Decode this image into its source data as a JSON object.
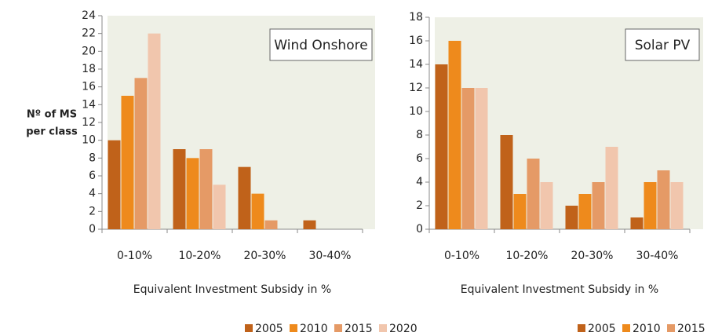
{
  "chart_data": [
    {
      "type": "bar",
      "title": "Wind Onshore",
      "ylabel": [
        "Nº of MS",
        "per class"
      ],
      "xlabel": "Equivalent Investment Subsidy in %",
      "categories": [
        "0-10%",
        "10-20%",
        "20-30%",
        "30-40%"
      ],
      "series": [
        {
          "name": "2005",
          "color": "#c0621a",
          "values": [
            10,
            9,
            7,
            1
          ]
        },
        {
          "name": "2010",
          "color": "#ee8a1c",
          "values": [
            15,
            8,
            4,
            0
          ]
        },
        {
          "name": "2015",
          "color": "#e59a66",
          "values": [
            17,
            9,
            1,
            0
          ]
        },
        {
          "name": "2020",
          "color": "#f1c6ad",
          "values": [
            22,
            5,
            0,
            0
          ]
        }
      ],
      "ylim": [
        0,
        24
      ],
      "yticks": [
        0,
        2,
        4,
        6,
        8,
        10,
        12,
        14,
        16,
        18,
        20,
        22,
        24
      ],
      "legend": "bottom"
    },
    {
      "type": "bar",
      "title": "Solar PV",
      "xlabel": "Equivalent Investment Subsidy in %",
      "categories": [
        "0-10%",
        "10-20%",
        "20-30%",
        "30-40%"
      ],
      "series": [
        {
          "name": "2005",
          "color": "#c0621a",
          "values": [
            14,
            8,
            2,
            1
          ]
        },
        {
          "name": "2010",
          "color": "#ee8a1c",
          "values": [
            16,
            3,
            3,
            4
          ]
        },
        {
          "name": "2015",
          "color": "#e59a66",
          "values": [
            12,
            6,
            4,
            5
          ]
        },
        {
          "name": "2020",
          "color": "#f1c6ad",
          "values": [
            12,
            4,
            7,
            4
          ]
        }
      ],
      "ylim": [
        0,
        18
      ],
      "yticks": [
        0,
        2,
        4,
        6,
        8,
        10,
        12,
        14,
        16,
        18
      ],
      "legend": "bottom"
    }
  ]
}
